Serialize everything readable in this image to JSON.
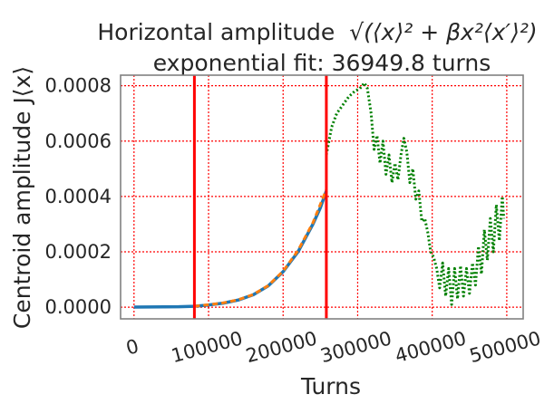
{
  "chart_data": {
    "type": "line",
    "title_line1": "Horizontal amplitude",
    "title_math": "√(⟨x⟩² + βx²⟨x′⟩²)",
    "title_line2": "exponential fit: 36949.8 turns",
    "xlabel": "Turns",
    "ylabel": "Centroid amplitude J⟨x⟩",
    "xlim": [
      -18000,
      522000
    ],
    "ylim": [
      -4.2e-05,
      0.000838
    ],
    "xticks": [
      0,
      100000,
      200000,
      300000,
      400000,
      500000
    ],
    "xtick_labels": [
      "0",
      "100000",
      "200000",
      "300000",
      "400000",
      "500000"
    ],
    "yticks": [
      0.0,
      0.0002,
      0.0004,
      0.0006,
      0.0008
    ],
    "ytick_labels": [
      "0.0000",
      "0.0002",
      "0.0004",
      "0.0006",
      "0.0008"
    ],
    "grid": true,
    "vlines": [
      {
        "x": 81000,
        "color": "#ff0000"
      },
      {
        "x": 258000,
        "color": "#ff0000"
      }
    ],
    "series": [
      {
        "color": "#1f77b4",
        "style": "solid",
        "points": [
          [
            0,
            5e-07
          ],
          [
            20000,
            1e-06
          ],
          [
            40000,
            1.5e-06
          ],
          [
            60000,
            2e-06
          ],
          [
            81000,
            3.5e-06
          ],
          [
            100000,
            8e-06
          ],
          [
            120000,
            1.5e-05
          ],
          [
            140000,
            2.6e-05
          ],
          [
            160000,
            4.5e-05
          ],
          [
            180000,
            7.7e-05
          ],
          [
            200000,
            0.000128
          ],
          [
            220000,
            0.0002
          ],
          [
            240000,
            0.0003
          ],
          [
            250000,
            0.00036
          ],
          [
            258000,
            0.00042
          ]
        ]
      },
      {
        "color": "#ff7f0e",
        "style": "dashed",
        "points": [
          [
            81000,
            3.5e-06
          ],
          [
            100000,
            9e-06
          ],
          [
            120000,
            1.6e-05
          ],
          [
            140000,
            2.7e-05
          ],
          [
            160000,
            4.6e-05
          ],
          [
            180000,
            7.8e-05
          ],
          [
            200000,
            0.00013
          ],
          [
            220000,
            0.000205
          ],
          [
            240000,
            0.000305
          ],
          [
            258000,
            0.000425
          ]
        ]
      },
      {
        "color": "#008000",
        "style": "dotted",
        "points": [
          [
            258000,
            0.00055
          ],
          [
            265000,
            0.00065
          ],
          [
            272000,
            0.0007
          ],
          [
            280000,
            0.00073
          ],
          [
            288000,
            0.00076
          ],
          [
            296000,
            0.00078
          ],
          [
            303000,
            0.00079
          ],
          [
            309000,
            0.00081
          ],
          [
            313000,
            0.00079
          ],
          [
            318000,
            0.0007
          ],
          [
            322000,
            0.00057
          ],
          [
            326000,
            0.00062
          ],
          [
            330000,
            0.00052
          ],
          [
            334000,
            0.0006
          ],
          [
            338000,
            0.00048
          ],
          [
            342000,
            0.00055
          ],
          [
            346000,
            0.00045
          ],
          [
            350000,
            0.00052
          ],
          [
            354000,
            0.00046
          ],
          [
            358000,
            0.00055
          ],
          [
            362000,
            0.00061
          ],
          [
            366000,
            0.00056
          ],
          [
            370000,
            0.00045
          ],
          [
            374000,
            0.0005
          ],
          [
            378000,
            0.00039
          ],
          [
            382000,
            0.00042
          ],
          [
            386000,
            0.00031
          ],
          [
            390000,
            0.00032
          ],
          [
            394000,
            0.00027
          ],
          [
            398000,
            0.0002
          ],
          [
            402000,
            0.00018
          ],
          [
            406000,
            0.00014
          ],
          [
            410000,
            7e-05
          ],
          [
            414000,
            0.00016
          ],
          [
            418000,
            4e-05
          ],
          [
            422000,
            0.00014
          ],
          [
            426000,
            1e-05
          ],
          [
            430000,
            0.00014
          ],
          [
            434000,
            3e-05
          ],
          [
            438000,
            0.00015
          ],
          [
            442000,
            4e-05
          ],
          [
            446000,
            0.00014
          ],
          [
            450000,
            5e-05
          ],
          [
            454000,
            0.00016
          ],
          [
            458000,
            8e-05
          ],
          [
            462000,
            0.00022
          ],
          [
            466000,
            0.00012
          ],
          [
            470000,
            0.00028
          ],
          [
            474000,
            0.00017
          ],
          [
            478000,
            0.00032
          ],
          [
            482000,
            0.0002
          ],
          [
            486000,
            0.00037
          ],
          [
            490000,
            0.00024
          ],
          [
            494000,
            0.0004
          ],
          [
            496000,
            0.00032
          ]
        ]
      }
    ]
  }
}
